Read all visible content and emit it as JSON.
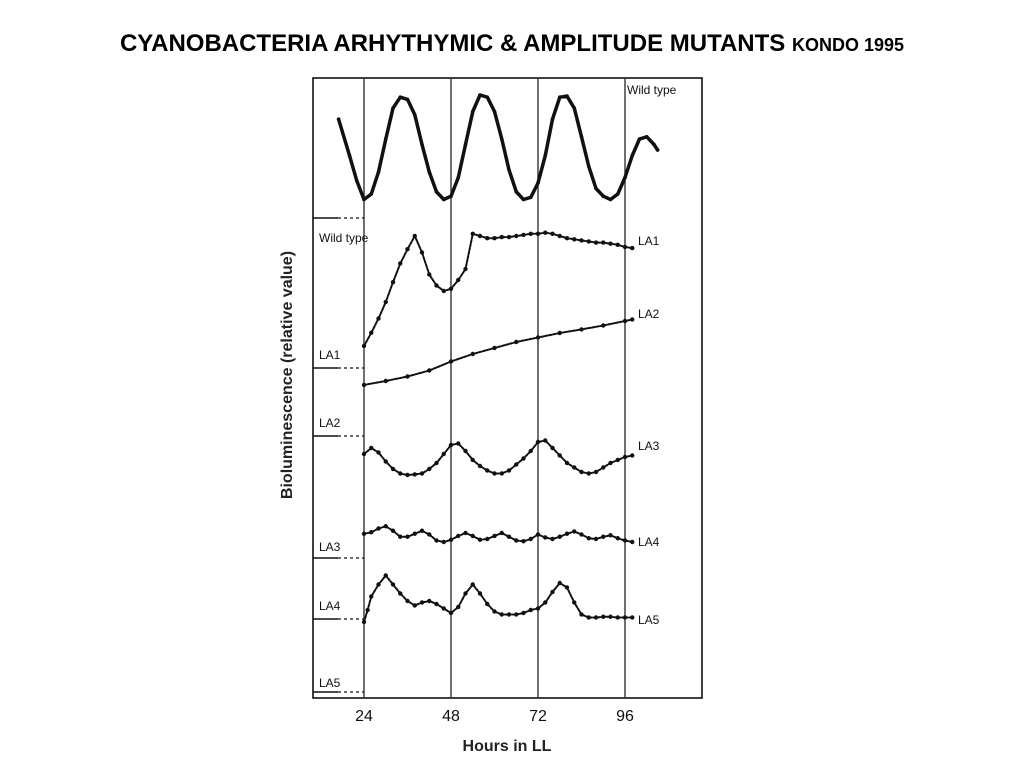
{
  "slide": {
    "title": "CYANOBACTERIA ARHYTHYMIC & AMPLITUDE MUTANTS",
    "subtitle": "KONDO 1995"
  },
  "chart_data": {
    "type": "line",
    "xlabel": "Hours in LL",
    "ylabel": "Bioluminescence (relative value)",
    "x_ticks": [
      24,
      48,
      72,
      96
    ],
    "xlim": [
      15,
      105
    ],
    "vertical_gridlines_at": [
      24,
      48,
      72,
      96
    ],
    "baseline_labels": [
      "Wild type",
      "LA1",
      "LA2",
      "LA3",
      "LA4",
      "LA5"
    ],
    "series": [
      {
        "name": "Wild type",
        "label_position": "top-right",
        "x": [
          17,
          20,
          22,
          24,
          26,
          28,
          30,
          32,
          34,
          36,
          38,
          40,
          42,
          44,
          46,
          48,
          50,
          52,
          54,
          56,
          58,
          60,
          62,
          64,
          66,
          68,
          70,
          72,
          74,
          76,
          78,
          80,
          82,
          84,
          86,
          88,
          90,
          92,
          94,
          96,
          98,
          100,
          102,
          104,
          105
        ],
        "y": [
          0.78,
          0.45,
          0.22,
          0.05,
          0.1,
          0.3,
          0.6,
          0.88,
          0.98,
          0.96,
          0.82,
          0.55,
          0.3,
          0.12,
          0.05,
          0.08,
          0.25,
          0.55,
          0.85,
          1.0,
          0.98,
          0.85,
          0.6,
          0.32,
          0.12,
          0.05,
          0.07,
          0.2,
          0.45,
          0.78,
          0.98,
          0.99,
          0.88,
          0.62,
          0.35,
          0.15,
          0.08,
          0.05,
          0.1,
          0.25,
          0.45,
          0.6,
          0.62,
          0.55,
          0.5
        ]
      },
      {
        "name": "LA1",
        "label_position": "right",
        "x": [
          24,
          26,
          28,
          30,
          32,
          34,
          36,
          38,
          40,
          42,
          44,
          46,
          48,
          50,
          52,
          54,
          56,
          58,
          60,
          62,
          64,
          66,
          68,
          70,
          72,
          74,
          76,
          78,
          80,
          82,
          84,
          86,
          88,
          90,
          92,
          94,
          96,
          98
        ],
        "y": [
          0.2,
          0.32,
          0.45,
          0.6,
          0.78,
          0.95,
          1.08,
          1.2,
          1.05,
          0.85,
          0.75,
          0.7,
          0.72,
          0.8,
          0.9,
          1.22,
          1.2,
          1.18,
          1.18,
          1.19,
          1.19,
          1.2,
          1.21,
          1.22,
          1.22,
          1.23,
          1.22,
          1.2,
          1.18,
          1.17,
          1.16,
          1.15,
          1.14,
          1.14,
          1.13,
          1.12,
          1.1,
          1.09
        ]
      },
      {
        "name": "LA2",
        "label_position": "right",
        "x": [
          24,
          30,
          36,
          42,
          48,
          54,
          60,
          66,
          72,
          78,
          84,
          90,
          96,
          98
        ],
        "y": [
          0.07,
          0.2,
          0.35,
          0.55,
          0.85,
          1.1,
          1.3,
          1.5,
          1.65,
          1.8,
          1.92,
          2.05,
          2.2,
          2.25
        ]
      },
      {
        "name": "LA3",
        "label_position": "right",
        "x": [
          24,
          26,
          28,
          30,
          32,
          34,
          36,
          38,
          40,
          42,
          44,
          46,
          48,
          50,
          52,
          54,
          56,
          58,
          60,
          62,
          64,
          66,
          68,
          70,
          72,
          74,
          76,
          78,
          80,
          82,
          84,
          86,
          88,
          90,
          92,
          94,
          96,
          98
        ],
        "y": [
          0.8,
          1.0,
          0.85,
          0.55,
          0.3,
          0.15,
          0.1,
          0.12,
          0.15,
          0.3,
          0.5,
          0.8,
          1.1,
          1.15,
          0.9,
          0.6,
          0.4,
          0.25,
          0.15,
          0.15,
          0.25,
          0.45,
          0.65,
          0.9,
          1.2,
          1.25,
          1.0,
          0.75,
          0.5,
          0.35,
          0.2,
          0.15,
          0.2,
          0.35,
          0.5,
          0.6,
          0.7,
          0.75
        ]
      },
      {
        "name": "LA4",
        "label_position": "right",
        "x": [
          24,
          26,
          28,
          30,
          32,
          34,
          36,
          38,
          40,
          42,
          44,
          46,
          48,
          50,
          52,
          54,
          56,
          58,
          60,
          62,
          64,
          66,
          68,
          70,
          72,
          74,
          76,
          78,
          80,
          82,
          84,
          86,
          88,
          90,
          92,
          94,
          96,
          98
        ],
        "y": [
          1.75,
          1.85,
          2.1,
          2.25,
          1.95,
          1.55,
          1.55,
          1.75,
          1.95,
          1.7,
          1.3,
          1.2,
          1.35,
          1.6,
          1.8,
          1.6,
          1.35,
          1.4,
          1.6,
          1.8,
          1.55,
          1.3,
          1.25,
          1.4,
          1.7,
          1.5,
          1.4,
          1.55,
          1.75,
          1.9,
          1.7,
          1.45,
          1.4,
          1.55,
          1.65,
          1.45,
          1.3,
          1.2
        ]
      },
      {
        "name": "LA5",
        "label_position": "right",
        "x": [
          24,
          25,
          26,
          28,
          30,
          32,
          34,
          36,
          38,
          40,
          42,
          44,
          46,
          48,
          50,
          52,
          54,
          56,
          58,
          60,
          62,
          64,
          66,
          68,
          70,
          72,
          74,
          76,
          78,
          80,
          82,
          84,
          86,
          88,
          90,
          92,
          94,
          96,
          98
        ],
        "y": [
          0.0,
          0.8,
          1.7,
          2.5,
          3.1,
          2.5,
          1.9,
          1.4,
          1.1,
          1.3,
          1.4,
          1.2,
          0.9,
          0.6,
          1.0,
          1.9,
          2.5,
          1.9,
          1.2,
          0.7,
          0.5,
          0.5,
          0.5,
          0.6,
          0.8,
          0.9,
          1.3,
          2.0,
          2.6,
          2.3,
          1.3,
          0.5,
          0.3,
          0.3,
          0.35,
          0.35,
          0.3,
          0.3,
          0.3
        ]
      }
    ]
  }
}
